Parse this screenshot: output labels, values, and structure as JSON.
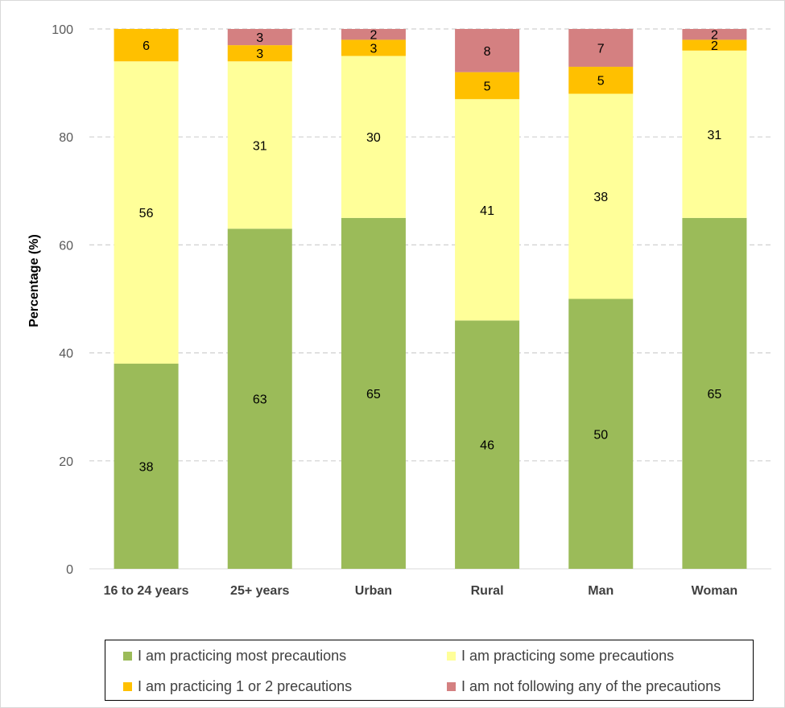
{
  "chart_data": {
    "type": "bar",
    "stacked": true,
    "title": "",
    "xlabel": "",
    "ylabel": "Percentage (%)",
    "ylim": [
      0,
      100
    ],
    "yticks": [
      0,
      20,
      40,
      60,
      80,
      100
    ],
    "grid": "horizontal dashed",
    "legend_position": "bottom",
    "categories": [
      "16 to 24 years",
      "25+ years",
      "Urban",
      "Rural",
      "Man",
      "Woman"
    ],
    "series": [
      {
        "name": "I am practicing most precautions",
        "color": "#9bbb59",
        "values": [
          38,
          63,
          65,
          46,
          50,
          65
        ]
      },
      {
        "name": "I am practicing some precautions",
        "color": "#ffff99",
        "values": [
          56,
          31,
          30,
          41,
          38,
          31
        ]
      },
      {
        "name": "I am practicing 1 or 2 precautions",
        "color": "#ffc000",
        "values": [
          6,
          3,
          3,
          5,
          5,
          2
        ]
      },
      {
        "name": "I am not following any of the precautions",
        "color": "#d48081",
        "values": [
          0,
          3,
          2,
          8,
          7,
          2
        ]
      }
    ]
  }
}
